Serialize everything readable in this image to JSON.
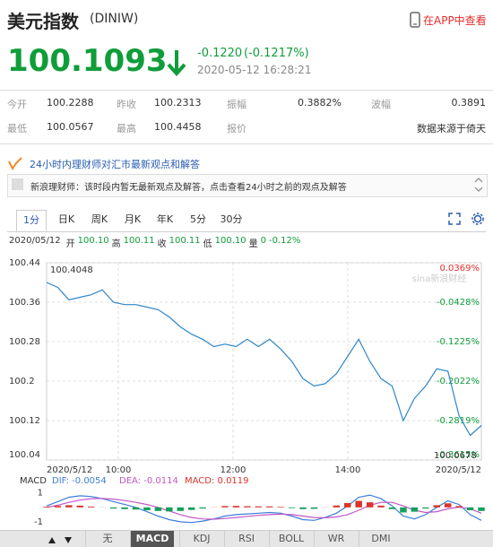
{
  "header": {
    "title": "美元指数",
    "code": "(DINIW)",
    "app_link": "在APP中查看"
  },
  "quote": {
    "price": "100.1093",
    "change": "-0.1220",
    "change_pct": "(-0.1217%)",
    "time": "2020-05-12 16:28:21"
  },
  "stats": {
    "rows": [
      [
        {
          "label": "今开",
          "value": "100.2288"
        },
        {
          "label": "昨收",
          "value": "100.2313"
        },
        {
          "label": "振幅",
          "value": "0.3882%"
        },
        {
          "label": "波幅",
          "value": "0.3891"
        }
      ],
      [
        {
          "label": "最低",
          "value": "100.0567"
        },
        {
          "label": "最高",
          "value": "100.4458"
        },
        {
          "label": "报价"
        }
      ]
    ],
    "source": "数据来源于倚天"
  },
  "news": {
    "heading": "24小时内理财师对汇市最新观点和解答",
    "text": "新浪理财师：该时段内暂无最新观点及解答，点击查看24小时之前的观点及解答"
  },
  "tabs": [
    "1分",
    "日K",
    "周K",
    "月K",
    "年K",
    "5分",
    "30分"
  ],
  "info_row": [
    "2020/05/12",
    "开",
    "100.10",
    "高",
    "100.11",
    "收",
    "100.11",
    "低",
    "100.10",
    "量",
    "0",
    "-0.12%"
  ],
  "chart_data": [
    {
      "type": "line",
      "color": "#2f86c8",
      "values": [
        100.4,
        100.39,
        100.365,
        100.37,
        100.375,
        100.385,
        100.36,
        100.355,
        100.355,
        100.35,
        100.345,
        100.33,
        100.31,
        100.295,
        100.285,
        100.27,
        100.275,
        100.27,
        100.285,
        100.27,
        100.285,
        100.265,
        100.24,
        100.205,
        100.19,
        100.195,
        100.215,
        100.25,
        100.285,
        100.24,
        100.205,
        100.19,
        100.12,
        100.165,
        100.19,
        100.225,
        100.22,
        100.13,
        100.09,
        100.11
      ],
      "ylim": [
        100.04,
        100.44
      ],
      "yticks": [
        100.44,
        100.36,
        100.28,
        100.2,
        100.12,
        100.04
      ],
      "y2lim": [
        -0.3615,
        0.0369
      ],
      "y2ticks": [
        {
          "value": 0.0369,
          "label": "0.0369%"
        },
        {
          "value": -0.0428,
          "label": "-0.0428%"
        },
        {
          "value": -0.1225,
          "label": "-0.1225%"
        },
        {
          "value": -0.2022,
          "label": "-0.2022%"
        },
        {
          "value": -0.2819,
          "label": "-0.2819%"
        },
        {
          "value": -0.3615,
          "label": "-0.3615%"
        }
      ],
      "up_color": "#e62c2c",
      "down_color": "#0f9d3a",
      "grid": true,
      "xtick_labels": [
        "2020/5/12",
        "10:00",
        "12:00",
        "14:00",
        "2020/5/12"
      ],
      "annotations": [
        "100.4048",
        "100.0678"
      ],
      "watermark": "sina新浪财经"
    },
    {
      "type": "macd",
      "title": "MACD",
      "ylim": [
        -1.5,
        1.6
      ],
      "yticks": [
        1,
        -1
      ],
      "up_color": "#d9342b",
      "down_color": "#13a05a",
      "series": [
        {
          "name": "DIF: -0.0054",
          "color": "#3d7fd6",
          "style": "line",
          "values": [
            0.1,
            0.4,
            0.7,
            0.8,
            0.75,
            0.6,
            0.4,
            0.2,
            0,
            -0.3,
            -0.6,
            -0.85,
            -1,
            -1.05,
            -0.95,
            -0.8,
            -0.6,
            -0.5,
            -0.45,
            -0.4,
            -0.35,
            -0.4,
            -0.6,
            -0.85,
            -0.9,
            -0.7,
            -0.4,
            0.1,
            0.7,
            0.85,
            0.6,
            0.1,
            -0.6,
            -0.8,
            -0.5,
            0,
            0.45,
            0.2,
            -0.5,
            -0.9
          ]
        },
        {
          "name": "DEA: -0.0114",
          "color": "#c256c9",
          "style": "line",
          "values": [
            0,
            0.15,
            0.35,
            0.5,
            0.6,
            0.62,
            0.57,
            0.47,
            0.35,
            0.2,
            0,
            -0.25,
            -0.5,
            -0.7,
            -0.8,
            -0.82,
            -0.77,
            -0.7,
            -0.62,
            -0.55,
            -0.5,
            -0.47,
            -0.5,
            -0.6,
            -0.7,
            -0.72,
            -0.66,
            -0.5,
            -0.2,
            0.15,
            0.35,
            0.35,
            0.1,
            -0.2,
            -0.35,
            -0.3,
            -0.1,
            0.02,
            -0.1,
            -0.4
          ]
        },
        {
          "name": "MACD: 0.0119",
          "color": "#d9342b",
          "style": "bar",
          "values": [
            0.05,
            0.1,
            0.15,
            0.12,
            0.06,
            -0.01,
            -0.08,
            -0.12,
            -0.15,
            -0.2,
            -0.25,
            -0.28,
            -0.25,
            -0.18,
            -0.08,
            0.01,
            0.09,
            0.1,
            0.08,
            0.07,
            0.07,
            0.04,
            -0.05,
            -0.12,
            -0.1,
            0.01,
            0.13,
            0.3,
            0.45,
            0.35,
            0.12,
            -0.12,
            -0.35,
            -0.3,
            -0.08,
            0.15,
            0.28,
            0.09,
            -0.2,
            -0.25
          ]
        }
      ]
    }
  ],
  "indicator_tabs": [
    "无",
    "MACD",
    "KDJ",
    "RSI",
    "BOLL",
    "WR",
    "DMI"
  ]
}
